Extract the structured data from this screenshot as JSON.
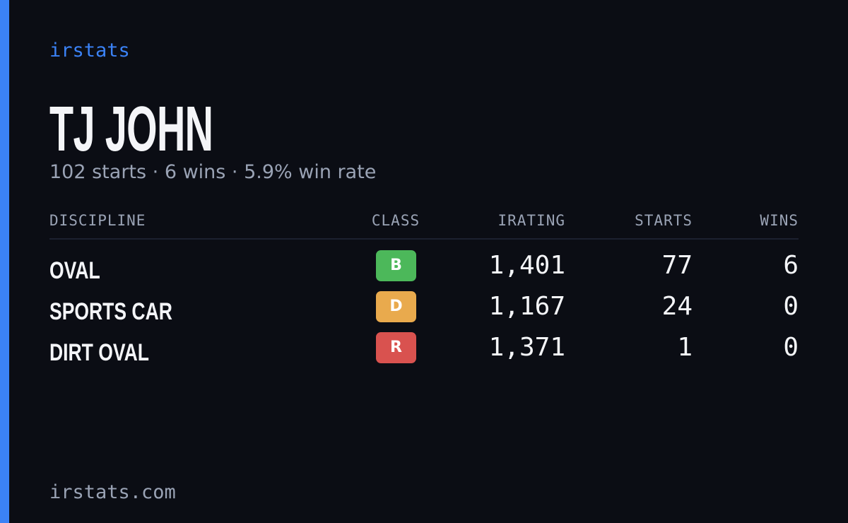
{
  "brand": "irstats",
  "driver": {
    "name": "TJ JOHN",
    "summary": "102 starts · 6 wins · 5.9% win rate"
  },
  "table": {
    "headers": [
      "DISCIPLINE",
      "CLASS",
      "IRATING",
      "STARTS",
      "WINS"
    ],
    "rows": [
      {
        "discipline": "OVAL",
        "class": "B",
        "badge_color": "#4cb85a",
        "irating": "1,401",
        "starts": "77",
        "wins": "6"
      },
      {
        "discipline": "SPORTS CAR",
        "class": "D",
        "badge_color": "#e9aa4d",
        "irating": "1,167",
        "starts": "24",
        "wins": "0"
      },
      {
        "discipline": "DIRT OVAL",
        "class": "R",
        "badge_color": "#d9524f",
        "irating": "1,371",
        "starts": "1",
        "wins": "0"
      }
    ]
  },
  "footer": "irstats.com"
}
